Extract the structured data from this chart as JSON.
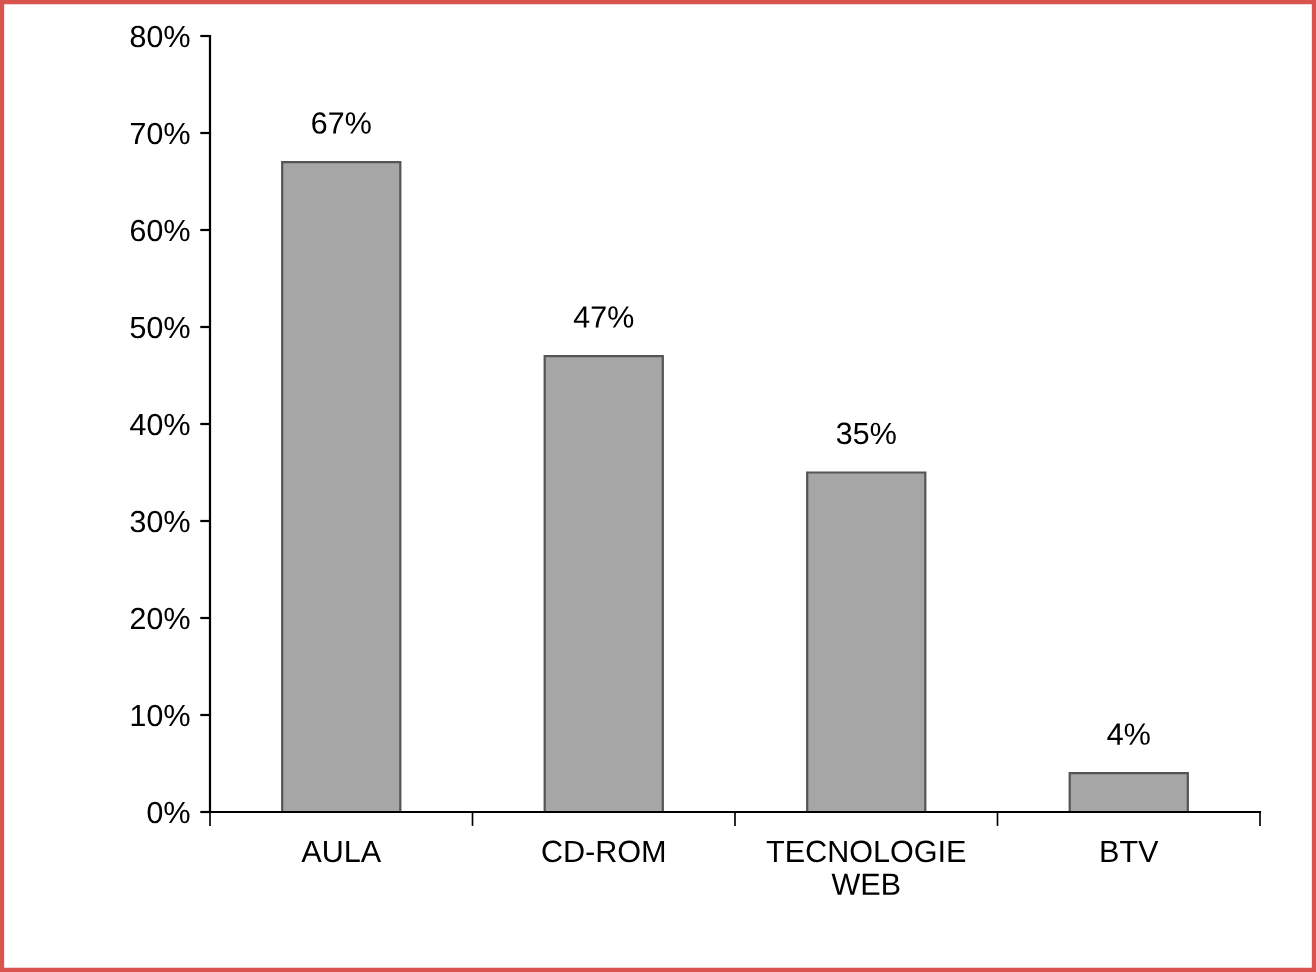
{
  "chart_data": {
    "type": "bar",
    "categories": [
      "AULA",
      "CD-ROM",
      "TECNOLOGIE\nWEB",
      "BTV"
    ],
    "values": [
      67,
      47,
      35,
      4
    ],
    "color": "#a6a6a6",
    "value_labels": [
      "67%",
      "47%",
      "35%",
      "4%"
    ],
    "ylim": [
      0,
      80
    ],
    "yticks": [
      {
        "value": 0,
        "label": "0%"
      },
      {
        "value": 10,
        "label": "10%"
      },
      {
        "value": 20,
        "label": "20%"
      },
      {
        "value": 30,
        "label": "30%"
      },
      {
        "value": 40,
        "label": "40%"
      },
      {
        "value": 50,
        "label": "50%"
      },
      {
        "value": 60,
        "label": "60%"
      },
      {
        "value": 70,
        "label": "70%"
      },
      {
        "value": 80,
        "label": "80%"
      }
    ],
    "grid": false,
    "legend": false
  }
}
